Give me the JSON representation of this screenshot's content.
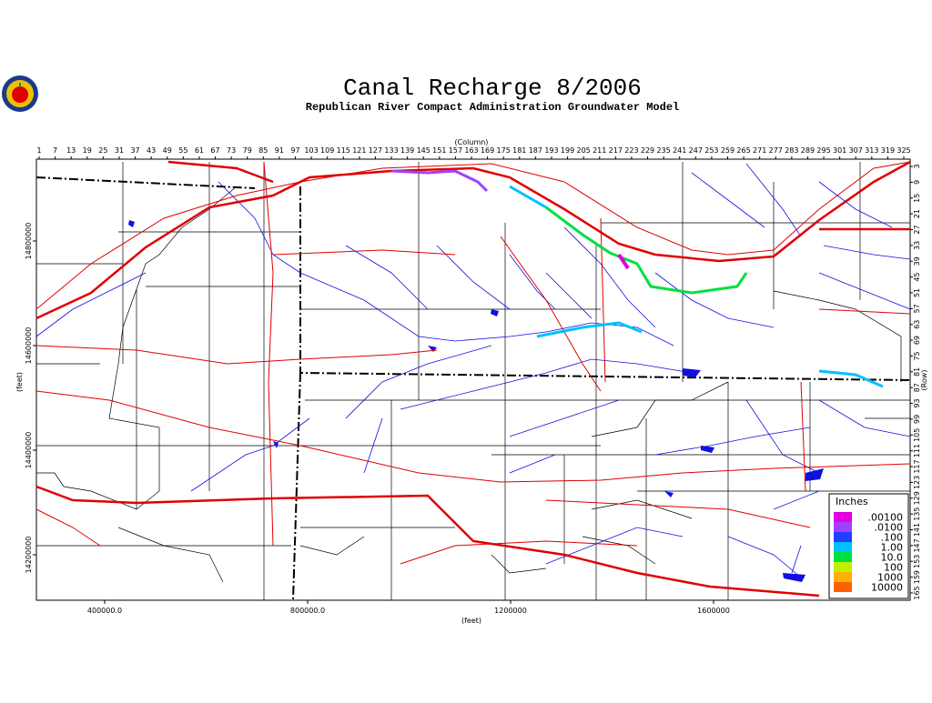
{
  "map": {
    "title": "Canal Recharge 8/2006",
    "subtitle": "Republican River Compact Administration Groundwater Model",
    "column_label": "(Column)",
    "row_label": "(Row)",
    "x_label": "(feet)",
    "y_label": "(feet)",
    "column_ticks": [
      1,
      7,
      13,
      19,
      25,
      31,
      37,
      43,
      49,
      55,
      61,
      67,
      73,
      79,
      85,
      91,
      97,
      103,
      109,
      115,
      121,
      127,
      133,
      139,
      145,
      151,
      157,
      163,
      169,
      175,
      181,
      187,
      193,
      199,
      205,
      211,
      217,
      223,
      229,
      235,
      241,
      247,
      253,
      259,
      265,
      271,
      277,
      283,
      289,
      295,
      301,
      307,
      313,
      319,
      325
    ],
    "row_ticks": [
      3,
      9,
      15,
      21,
      27,
      33,
      39,
      45,
      51,
      57,
      63,
      69,
      75,
      81,
      87,
      93,
      99,
      105,
      111,
      117,
      123,
      129,
      135,
      141,
      147,
      153,
      159,
      165
    ],
    "x_ticks": [
      {
        "value": 400000,
        "label": "400000.0"
      },
      {
        "value": 800000,
        "label": "800000.0"
      },
      1200000,
      1600000
    ],
    "y_ticks": [
      14800000,
      14600000,
      14400000,
      14200000
    ],
    "legend": {
      "title": "Inches",
      "entries": [
        {
          "label": ".00100",
          "color": "#e000e0"
        },
        {
          "label": ".0100",
          "color": "#a040ff"
        },
        {
          "label": ".100",
          "color": "#2040ff"
        },
        {
          "label": "1.00",
          "color": "#00c0ff"
        },
        {
          "label": "10.0",
          "color": "#00e040"
        },
        {
          "label": "100",
          "color": "#c0f000"
        },
        {
          "label": "1000",
          "color": "#ffb000"
        },
        {
          "label": "10000",
          "color": "#ff6000"
        }
      ]
    }
  }
}
